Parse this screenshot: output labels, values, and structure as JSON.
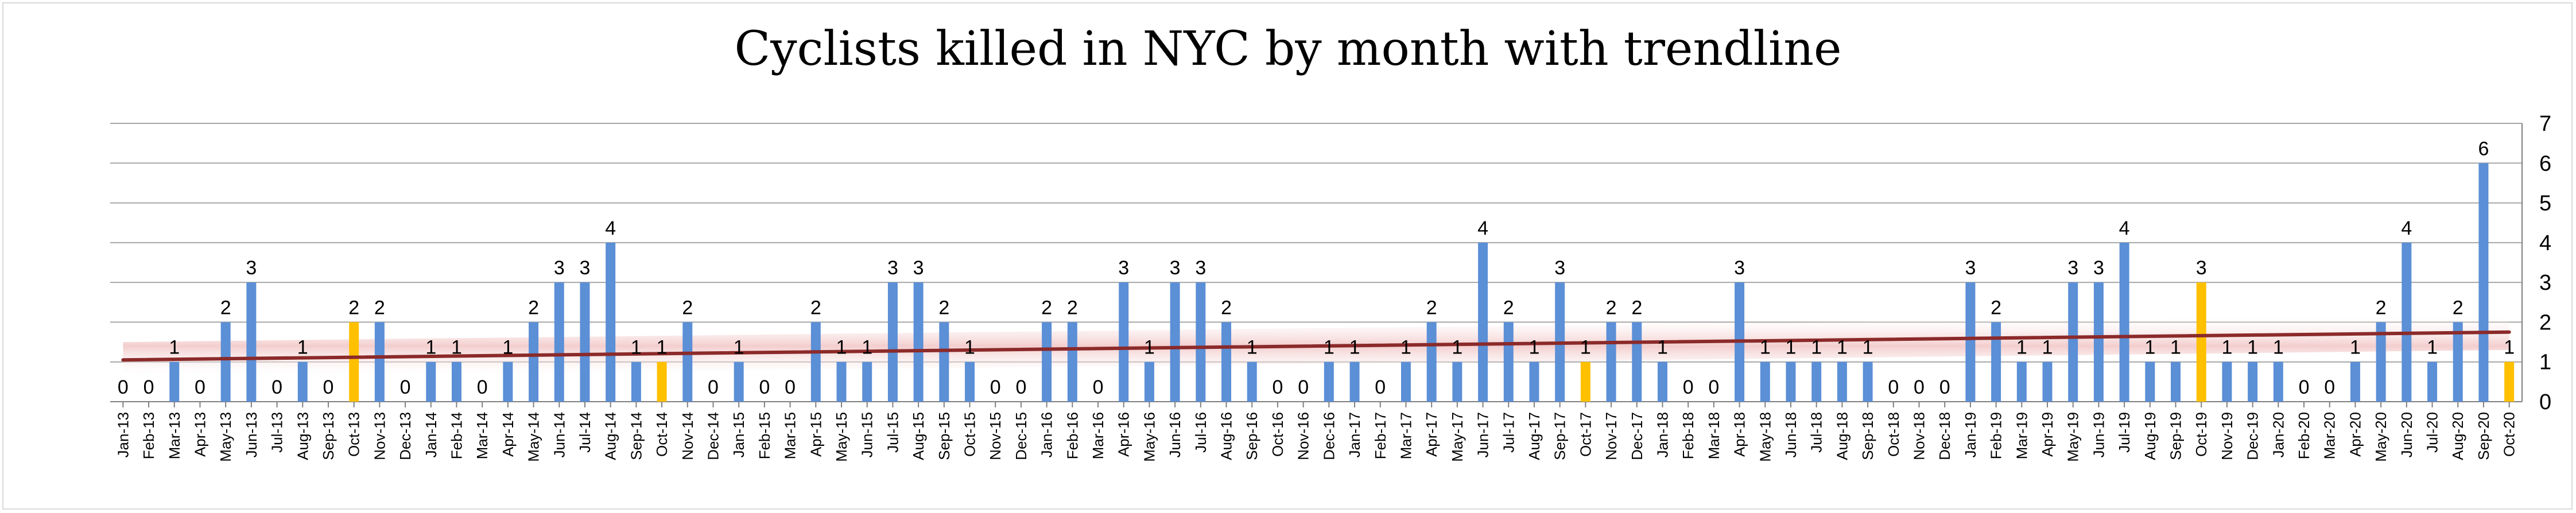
{
  "chart_data": {
    "type": "bar",
    "title": "Cyclists killed in NYC  by month with trendline",
    "xlabel": "",
    "ylabel": "",
    "ylim": [
      0,
      7
    ],
    "yticks": [
      0,
      1,
      2,
      3,
      4,
      5,
      6,
      7
    ],
    "y_axis_side": "right",
    "grid": true,
    "legend": "none",
    "categories": [
      "Jan-13",
      "Feb-13",
      "Mar-13",
      "Apr-13",
      "May-13",
      "Jun-13",
      "Jul-13",
      "Aug-13",
      "Sep-13",
      "Oct-13",
      "Nov-13",
      "Dec-13",
      "Jan-14",
      "Feb-14",
      "Mar-14",
      "Apr-14",
      "May-14",
      "Jun-14",
      "Jul-14",
      "Aug-14",
      "Sep-14",
      "Oct-14",
      "Nov-14",
      "Dec-14",
      "Jan-15",
      "Feb-15",
      "Mar-15",
      "Apr-15",
      "May-15",
      "Jun-15",
      "Jul-15",
      "Aug-15",
      "Sep-15",
      "Oct-15",
      "Nov-15",
      "Dec-15",
      "Jan-16",
      "Feb-16",
      "Mar-16",
      "Apr-16",
      "May-16",
      "Jun-16",
      "Jul-16",
      "Aug-16",
      "Sep-16",
      "Oct-16",
      "Nov-16",
      "Dec-16",
      "Jan-17",
      "Feb-17",
      "Mar-17",
      "Apr-17",
      "May-17",
      "Jun-17",
      "Jul-17",
      "Aug-17",
      "Sep-17",
      "Oct-17",
      "Nov-17",
      "Dec-17",
      "Jan-18",
      "Feb-18",
      "Mar-18",
      "Apr-18",
      "May-18",
      "Jun-18",
      "Jul-18",
      "Aug-18",
      "Sep-18",
      "Oct-18",
      "Nov-18",
      "Dec-18",
      "Jan-19",
      "Feb-19",
      "Mar-19",
      "Apr-19",
      "May-19",
      "Jun-19",
      "Jul-19",
      "Aug-19",
      "Sep-19",
      "Oct-19",
      "Nov-19",
      "Dec-19",
      "Jan-20",
      "Feb-20",
      "Mar-20",
      "Apr-20",
      "May-20",
      "Jun-20",
      "Jul-20",
      "Aug-20",
      "Sep-20",
      "Oct-20"
    ],
    "values": [
      0,
      0,
      1,
      0,
      2,
      3,
      0,
      1,
      0,
      2,
      2,
      0,
      1,
      1,
      0,
      1,
      2,
      3,
      3,
      4,
      1,
      1,
      2,
      0,
      1,
      0,
      0,
      2,
      1,
      1,
      3,
      3,
      2,
      1,
      0,
      0,
      2,
      2,
      0,
      3,
      1,
      3,
      3,
      2,
      1,
      0,
      0,
      1,
      1,
      0,
      1,
      2,
      1,
      4,
      2,
      1,
      3,
      1,
      2,
      2,
      1,
      0,
      0,
      3,
      1,
      1,
      1,
      1,
      1,
      0,
      0,
      0,
      3,
      2,
      1,
      1,
      3,
      3,
      4,
      1,
      1,
      3,
      1,
      1,
      1,
      0,
      0,
      1,
      2,
      4,
      1,
      2,
      6,
      1
    ],
    "highlighted_categories": [
      "Oct-13",
      "Oct-14",
      "Oct-17",
      "Oct-19",
      "Oct-20"
    ],
    "trendline": {
      "type": "linear",
      "start": 1.05,
      "end": 1.75
    },
    "colors": {
      "bar": "#5b8fd6",
      "highlight": "#ffc000",
      "trendline": "#8b2a2a",
      "trend_band": "#f2c8c8",
      "grid": "#a6a6a6"
    }
  }
}
